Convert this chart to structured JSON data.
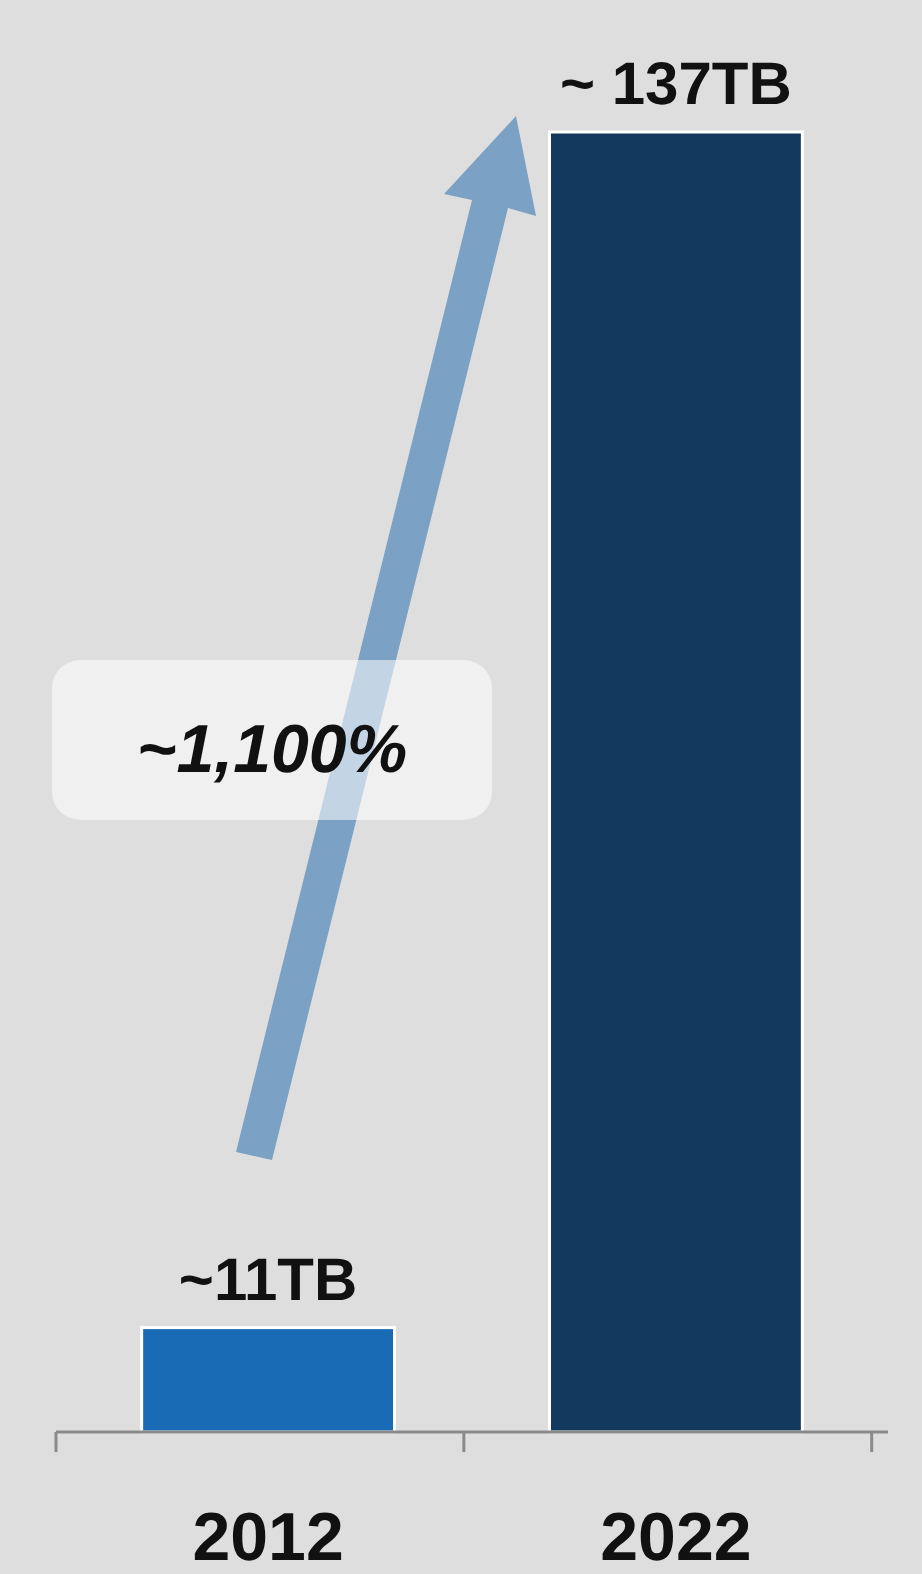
{
  "chart_data": {
    "type": "bar",
    "categories": [
      "2012",
      "2022"
    ],
    "values": [
      11,
      137
    ],
    "colors": [
      "#1a6bb5",
      "#133a5e"
    ],
    "value_labels": [
      "~11TB",
      "~ 137TB"
    ],
    "annotations": [
      "~1,100%"
    ]
  }
}
